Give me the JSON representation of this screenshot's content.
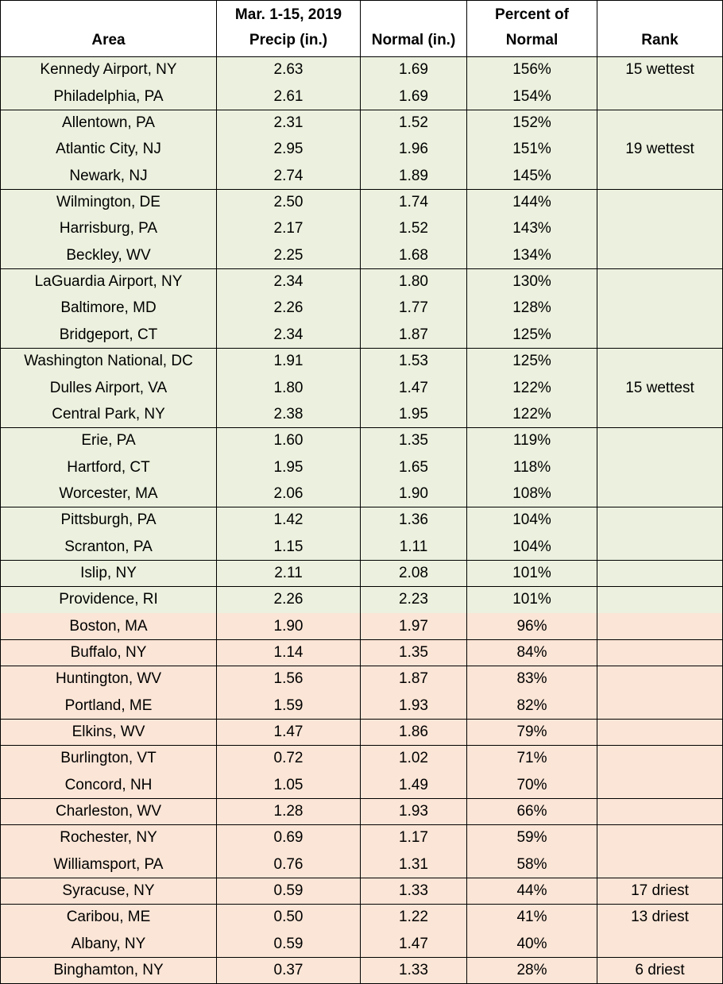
{
  "table": {
    "header": [
      [
        "Area"
      ],
      [
        "Mar. 1-15, 2019",
        "Precip (in.)"
      ],
      [
        "Normal (in.)"
      ],
      [
        "Percent of",
        "Normal"
      ],
      [
        "Rank"
      ]
    ],
    "rows": [
      [
        "Kennedy Airport, NY",
        "2.63",
        "1.69",
        "156%",
        "15 wettest"
      ],
      [
        "Philadelphia, PA",
        "2.61",
        "1.69",
        "154%"
      ],
      [
        "Allentown, PA",
        "2.31",
        "1.52",
        "152%"
      ],
      [
        "Atlantic City, NJ",
        "2.95",
        "1.96",
        "151%",
        "19 wettest"
      ],
      [
        "Newark, NJ",
        "2.74",
        "1.89",
        "145%"
      ],
      [
        "Wilmington, DE",
        "2.50",
        "1.74",
        "144%"
      ],
      [
        "Harrisburg, PA",
        "2.17",
        "1.52",
        "143%"
      ],
      [
        "Beckley, WV",
        "2.25",
        "1.68",
        "134%"
      ],
      [
        "LaGuardia Airport, NY",
        "2.34",
        "1.80",
        "130%"
      ],
      [
        "Baltimore, MD",
        "2.26",
        "1.77",
        "128%"
      ],
      [
        "Bridgeport, CT",
        "2.34",
        "1.87",
        "125%"
      ],
      [
        "Washington National, DC",
        "1.91",
        "1.53",
        "125%"
      ],
      [
        "Dulles Airport, VA",
        "1.80",
        "1.47",
        "122%",
        "15 wettest"
      ],
      [
        "Central Park, NY",
        "2.38",
        "1.95",
        "122%"
      ],
      [
        "Erie, PA",
        "1.60",
        "1.35",
        "119%"
      ],
      [
        "Hartford, CT",
        "1.95",
        "1.65",
        "118%"
      ],
      [
        "Worcester, MA",
        "2.06",
        "1.90",
        "108%"
      ],
      [
        "Pittsburgh, PA",
        "1.42",
        "1.36",
        "104%"
      ],
      [
        "Scranton, PA",
        "1.15",
        "1.11",
        "104%"
      ],
      [
        "Islip, NY",
        "2.11",
        "2.08",
        "101%"
      ],
      [
        "Providence, RI",
        "2.26",
        "2.23",
        "101%"
      ],
      [
        "Boston, MA",
        "1.90",
        "1.97",
        "96%"
      ],
      [
        "Buffalo, NY",
        "1.14",
        "1.35",
        "84%"
      ],
      [
        "Huntington, WV",
        "1.56",
        "1.87",
        "83%"
      ],
      [
        "Portland, ME",
        "1.59",
        "1.93",
        "82%"
      ],
      [
        "Elkins, WV",
        "1.47",
        "1.86",
        "79%"
      ],
      [
        "Burlington, VT",
        "0.72",
        "1.02",
        "71%"
      ],
      [
        "Concord, NH",
        "1.05",
        "1.49",
        "70%"
      ],
      [
        "Charleston, WV",
        "1.28",
        "1.93",
        "66%"
      ],
      [
        "Rochester, NY",
        "0.69",
        "1.17",
        "59%"
      ],
      [
        "Williamsport, PA",
        "0.76",
        "1.31",
        "58%"
      ],
      [
        "Syracuse, NY",
        "0.59",
        "1.33",
        "44%",
        "17 driest"
      ],
      [
        "Caribou, ME",
        "0.50",
        "1.22",
        "41%",
        "13 driest"
      ],
      [
        "Albany, NY",
        "0.59",
        "1.47",
        "40%"
      ],
      [
        "Binghamton, NY",
        "0.37",
        "1.33",
        "28%",
        "6 driest"
      ]
    ]
  }
}
